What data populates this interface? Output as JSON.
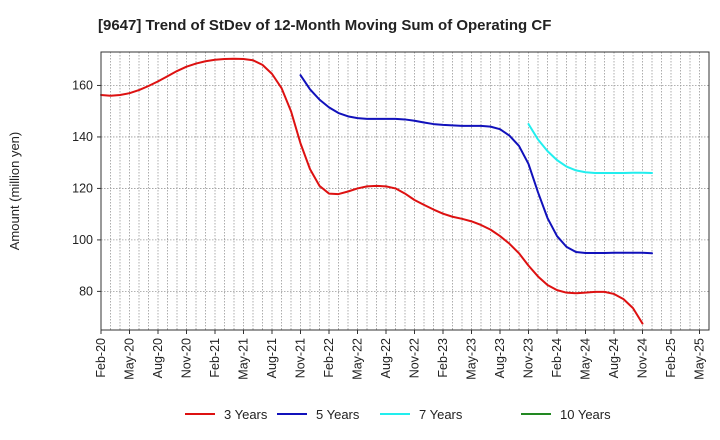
{
  "chart_data": {
    "type": "line",
    "title": "[9647]  Trend of StDev of 12-Month Moving Sum of Operating CF",
    "ylabel": "Amount (million yen)",
    "xlabel": "",
    "ylim": [
      65,
      173
    ],
    "yticks": [
      80,
      100,
      120,
      140,
      160
    ],
    "grid": true,
    "legend_position": "bottom",
    "x_tick_labels": [
      "Feb-20",
      "May-20",
      "Aug-20",
      "Nov-20",
      "Feb-21",
      "May-21",
      "Aug-21",
      "Nov-21",
      "Feb-22",
      "May-22",
      "Aug-22",
      "Nov-22",
      "Feb-23",
      "May-23",
      "Aug-23",
      "Nov-23",
      "Feb-24",
      "May-24",
      "Aug-24",
      "Nov-24",
      "Feb-25",
      "May-25"
    ],
    "months_total": 64,
    "series": [
      {
        "name": "3 Years",
        "color": "#dd1111",
        "start_index": 0,
        "values": [
          156.3,
          156.0,
          156.3,
          157.0,
          158.2,
          159.8,
          161.6,
          163.6,
          165.6,
          167.3,
          168.5,
          169.4,
          170.0,
          170.3,
          170.4,
          170.3,
          169.8,
          168.0,
          164.5,
          159.0,
          150.0,
          137.5,
          127.5,
          121.0,
          118.0,
          117.8,
          118.8,
          120.0,
          120.8,
          121.0,
          120.8,
          120.0,
          118.0,
          115.5,
          113.6,
          111.8,
          110.2,
          109.0,
          108.2,
          107.2,
          105.8,
          104.0,
          101.5,
          98.5,
          94.8,
          90.0,
          85.8,
          82.5,
          80.5,
          79.5,
          79.3,
          79.5,
          79.8,
          79.8,
          79.0,
          77.0,
          73.5,
          67.5
        ]
      },
      {
        "name": "5 Years",
        "color": "#1111bb",
        "start_index": 21,
        "values": [
          164.0,
          158.5,
          154.5,
          151.5,
          149.3,
          148.0,
          147.3,
          147.0,
          147.0,
          147.0,
          147.0,
          146.8,
          146.3,
          145.6,
          145.0,
          144.7,
          144.5,
          144.3,
          144.3,
          144.3,
          144.0,
          143.0,
          140.5,
          136.5,
          129.5,
          118.5,
          108.5,
          101.5,
          97.3,
          95.3,
          94.9,
          94.9,
          94.9,
          95.0,
          95.0,
          95.0,
          95.0,
          94.8
        ]
      },
      {
        "name": "7 Years",
        "color": "#22eeee",
        "start_index": 45,
        "values": [
          145.0,
          139.0,
          134.5,
          131.0,
          128.5,
          127.0,
          126.3,
          126.0,
          126.0,
          126.0,
          126.0,
          126.1,
          126.1,
          126.0
        ]
      },
      {
        "name": "10 Years",
        "color": "#228822",
        "start_index": 0,
        "values": []
      }
    ]
  }
}
